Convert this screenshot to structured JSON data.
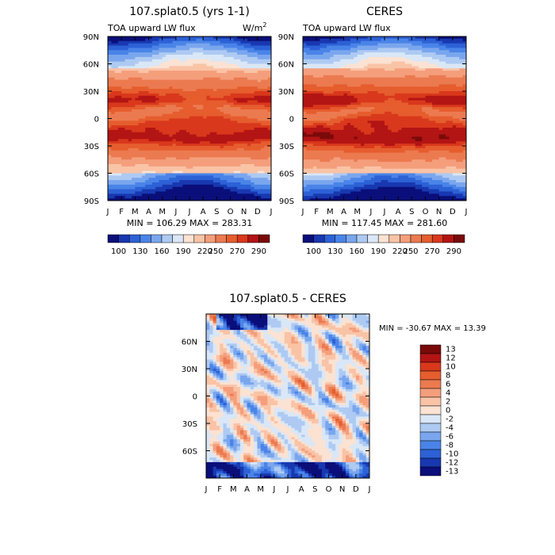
{
  "chart_data": [
    {
      "type": "heatmap",
      "title": "107.splat0.5 (yrs 1-1)",
      "subtitle_left": "TOA upward LW flux",
      "units_base": "W/m",
      "units_exp": "2",
      "x": [
        "J",
        "F",
        "M",
        "A",
        "M",
        "J",
        "J",
        "A",
        "S",
        "O",
        "N",
        "D",
        "J"
      ],
      "yticks": [
        "90N",
        "60N",
        "30N",
        "0",
        "30S",
        "60S",
        "90S"
      ],
      "ylim": [
        -90,
        90
      ],
      "min_label": "MIN = 106.29",
      "max_label": "MAX = 283.31",
      "min": 106.29,
      "max": 283.31,
      "colorbar_ticks": [
        "100",
        "130",
        "160",
        "190",
        "220",
        "250",
        "270",
        "290"
      ]
    },
    {
      "type": "heatmap",
      "title": "CERES",
      "subtitle_left": "TOA upward LW flux",
      "x": [
        "J",
        "F",
        "M",
        "A",
        "M",
        "J",
        "J",
        "A",
        "S",
        "O",
        "N",
        "D",
        "J"
      ],
      "yticks": [
        "90N",
        "60N",
        "30N",
        "0",
        "30S",
        "60S",
        "90S"
      ],
      "ylim": [
        -90,
        90
      ],
      "min_label": "MIN = 117.45",
      "max_label": "MAX = 281.60",
      "min": 117.45,
      "max": 281.6,
      "colorbar_ticks": [
        "100",
        "130",
        "160",
        "190",
        "220",
        "250",
        "270",
        "290"
      ]
    },
    {
      "type": "heatmap",
      "title": "107.splat0.5 - CERES",
      "x": [
        "J",
        "F",
        "M",
        "A",
        "M",
        "J",
        "J",
        "A",
        "S",
        "O",
        "N",
        "D",
        "J"
      ],
      "yticks": [
        "60N",
        "30N",
        "0",
        "30S",
        "60S"
      ],
      "ylim": [
        -90,
        90
      ],
      "minmax_label": "MIN = -30.67 MAX =  13.39",
      "min": -30.67,
      "max": 13.39,
      "colorbar_ticks": [
        "13",
        "12",
        "10",
        "8",
        "6",
        "4",
        "2",
        "0",
        "-2",
        "-4",
        "-6",
        "-8",
        "-10",
        "-12",
        "-13"
      ]
    }
  ],
  "colors": {
    "absolute_scale": [
      "#0a0f7a",
      "#1838b0",
      "#2d61d6",
      "#4a84e8",
      "#7aa6ee",
      "#aecaf2",
      "#d9e7f7",
      "#fbe2d2",
      "#f9c3a6",
      "#f49e7c",
      "#ec7a50",
      "#e65d2e",
      "#d9381c",
      "#b31414",
      "#7a0a0a"
    ],
    "difference_scale": [
      "#7a0a0a",
      "#b31414",
      "#d9381c",
      "#e65d2e",
      "#ec7a50",
      "#f49e7c",
      "#f9c3a6",
      "#fbe2d2",
      "#d9e7f7",
      "#aecaf2",
      "#7aa6ee",
      "#4a84e8",
      "#2d61d6",
      "#1838b0",
      "#0a0f7a"
    ]
  }
}
